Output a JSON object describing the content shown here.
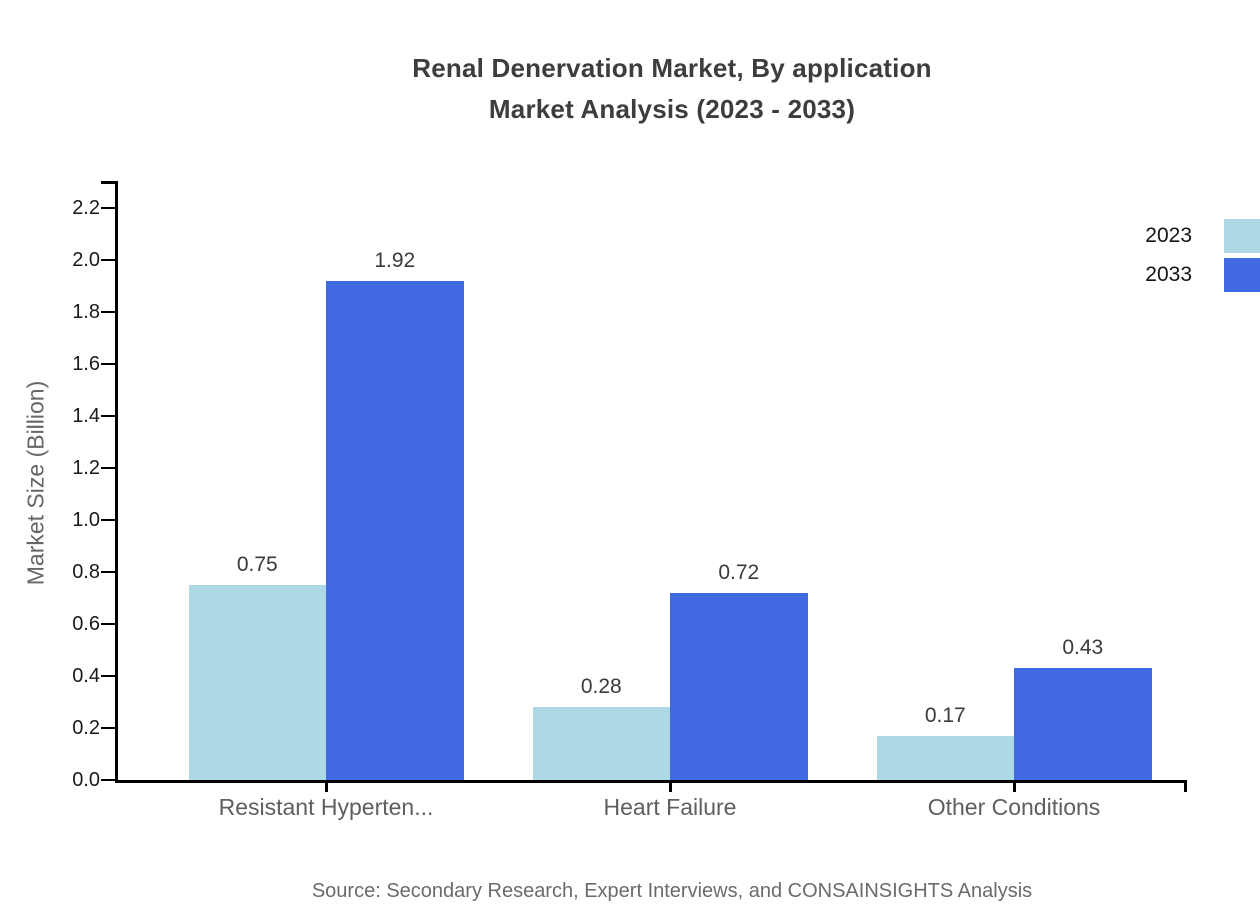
{
  "title": {
    "line1": "Renal Denervation Market, By application",
    "line2": "Market Analysis (2023 - 2033)"
  },
  "y_axis": {
    "label": "Market Size (Billion)",
    "ticks": [
      "0.0",
      "0.2",
      "0.4",
      "0.6",
      "0.8",
      "1.0",
      "1.2",
      "1.4",
      "1.6",
      "1.8",
      "2.0",
      "2.2"
    ]
  },
  "legend": {
    "items": [
      {
        "label": "2023",
        "color": "#ADD8E6"
      },
      {
        "label": "2033",
        "color": "#4169E1"
      }
    ]
  },
  "footer": {
    "source": "Source: Secondary Research, Expert Interviews, and CONSAINSIGHTS Analysis"
  },
  "chart_data": {
    "type": "bar",
    "title": "Renal Denervation Market, By application Market Analysis (2023 - 2033)",
    "categories": [
      "Resistant Hyperten...",
      "Heart Failure",
      "Other Conditions"
    ],
    "series": [
      {
        "name": "2023",
        "color": "#ADD8E6",
        "values": [
          0.75,
          0.28,
          0.17
        ]
      },
      {
        "name": "2033",
        "color": "#4169E1",
        "values": [
          1.92,
          0.72,
          0.43
        ]
      }
    ],
    "xlabel": "",
    "ylabel": "Market Size (Billion)",
    "ylim": [
      0,
      2.3
    ],
    "ytick_step": 0.2,
    "grid": false,
    "legend_position": "top-right",
    "value_labels": true
  }
}
